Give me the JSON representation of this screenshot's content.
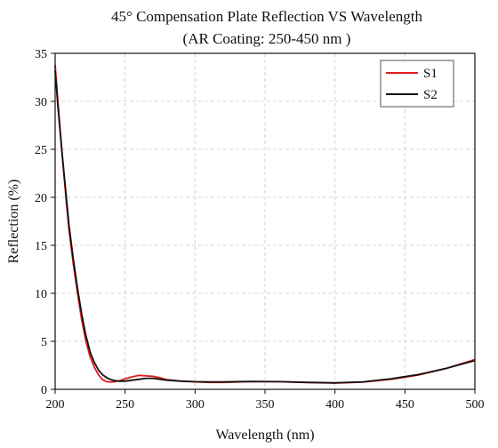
{
  "chart_data": {
    "type": "line",
    "title": "45° Compensation Plate Reflection VS Wavelength",
    "subtitle": "(AR Coating: 250-450 nm )",
    "xlabel": "Wavelength (nm)",
    "ylabel": "Reflection (%)",
    "xlim": [
      200,
      500
    ],
    "ylim": [
      0,
      35
    ],
    "xticks": [
      200,
      250,
      300,
      350,
      400,
      450,
      500
    ],
    "yticks": [
      0,
      5,
      10,
      15,
      20,
      25,
      30,
      35
    ],
    "grid": true,
    "legend_position": "top-right",
    "series": [
      {
        "name": "S1",
        "color": "#e31a1c",
        "x": [
          200,
          202,
          205,
          208,
          210,
          213,
          216,
          219,
          222,
          225,
          228,
          231,
          234,
          237,
          240,
          243,
          246,
          250,
          255,
          260,
          265,
          270,
          275,
          280,
          290,
          300,
          310,
          320,
          340,
          360,
          380,
          400,
          420,
          440,
          460,
          480,
          500
        ],
        "y": [
          33.8,
          30.0,
          24.5,
          19.5,
          16.5,
          13.0,
          10.0,
          7.2,
          5.0,
          3.4,
          2.3,
          1.5,
          1.0,
          0.8,
          0.75,
          0.8,
          0.9,
          1.1,
          1.3,
          1.45,
          1.4,
          1.35,
          1.2,
          1.0,
          0.85,
          0.78,
          0.72,
          0.72,
          0.8,
          0.8,
          0.7,
          0.65,
          0.75,
          1.05,
          1.5,
          2.2,
          3.1
        ]
      },
      {
        "name": "S2",
        "color": "#111111",
        "x": [
          200,
          202,
          205,
          208,
          210,
          213,
          216,
          219,
          222,
          225,
          228,
          231,
          234,
          237,
          240,
          243,
          246,
          250,
          255,
          260,
          265,
          270,
          275,
          280,
          290,
          300,
          310,
          320,
          340,
          360,
          380,
          400,
          420,
          440,
          460,
          480,
          500
        ],
        "y": [
          33.2,
          29.5,
          24.5,
          20.0,
          17.0,
          13.5,
          10.5,
          7.8,
          5.6,
          3.9,
          2.8,
          2.0,
          1.5,
          1.2,
          1.0,
          0.9,
          0.85,
          0.85,
          0.95,
          1.05,
          1.15,
          1.15,
          1.05,
          0.95,
          0.85,
          0.8,
          0.78,
          0.78,
          0.82,
          0.8,
          0.72,
          0.68,
          0.78,
          1.1,
          1.55,
          2.2,
          3.0
        ]
      }
    ]
  }
}
